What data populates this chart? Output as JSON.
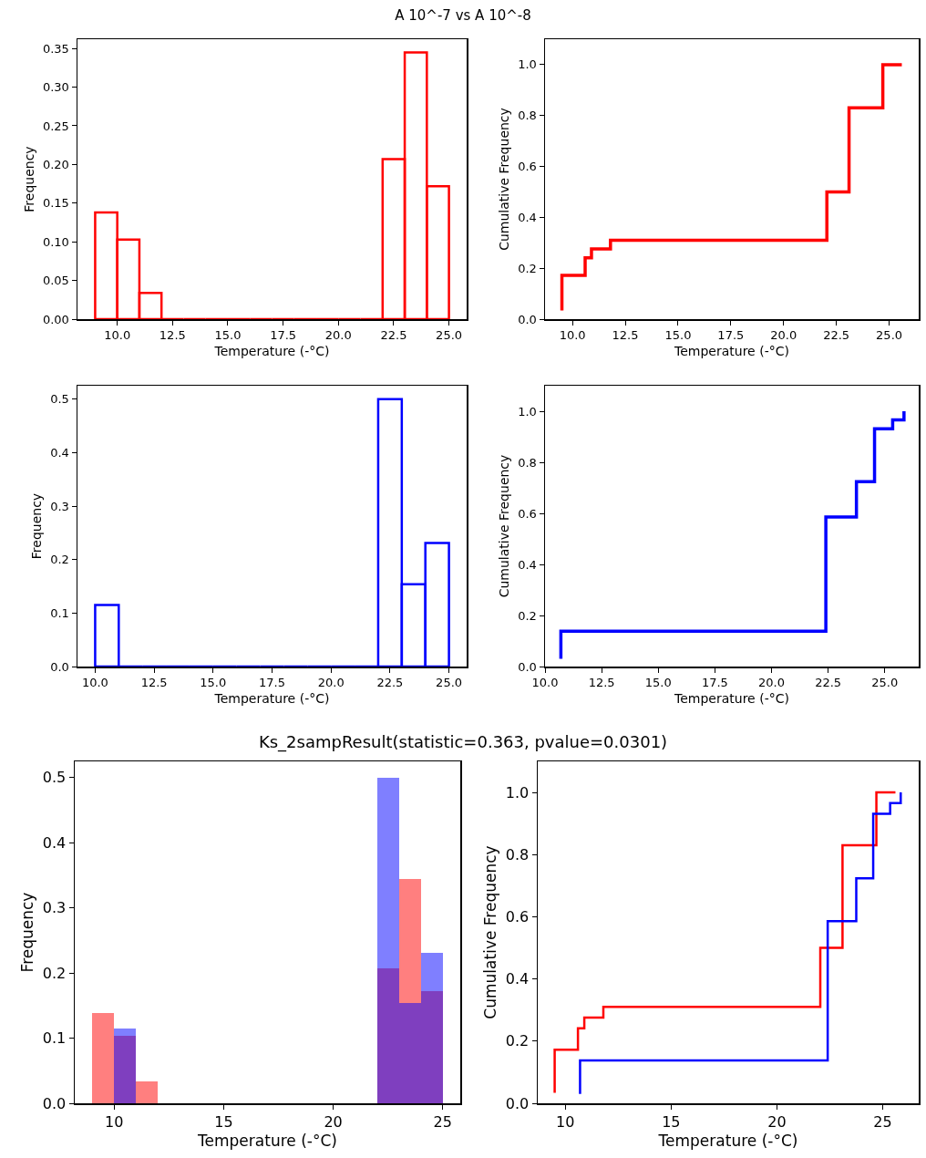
{
  "chart_data": [
    {
      "type": "histogram",
      "title": "A 10^-7 vs A 10^-8",
      "xlabel": "Temperature (-°C)",
      "ylabel": "Frequency",
      "color": "#ff0000",
      "bins": [
        9,
        10,
        11,
        12,
        13,
        14,
        15,
        16,
        17,
        18,
        19,
        20,
        21,
        22,
        23,
        24,
        25
      ],
      "values": [
        0.138,
        0.103,
        0.034,
        0,
        0,
        0,
        0,
        0,
        0,
        0,
        0,
        0,
        0,
        0.207,
        0.345,
        0.172
      ],
      "xlim": [
        8.2,
        25.8
      ],
      "xticks": [
        {
          "value": 10,
          "label": "10.0"
        },
        {
          "value": 12.5,
          "label": "12.5"
        },
        {
          "value": 15,
          "label": "15.0"
        },
        {
          "value": 17.5,
          "label": "17.5"
        },
        {
          "value": 20,
          "label": "20.0"
        },
        {
          "value": 22.5,
          "label": "22.5"
        },
        {
          "value": 25,
          "label": "25.0"
        }
      ],
      "ylim": [
        0,
        0.362
      ],
      "yticks": [
        {
          "value": 0,
          "label": "0.00"
        },
        {
          "value": 0.05,
          "label": "0.05"
        },
        {
          "value": 0.1,
          "label": "0.10"
        },
        {
          "value": 0.15,
          "label": "0.15"
        },
        {
          "value": 0.2,
          "label": "0.20"
        },
        {
          "value": 0.25,
          "label": "0.25"
        },
        {
          "value": 0.3,
          "label": "0.30"
        },
        {
          "value": 0.35,
          "label": "0.35"
        }
      ]
    },
    {
      "type": "step",
      "xlabel": "Temperature (-°C)",
      "ylabel": "Cumulative Frequency",
      "color": "#ff0000",
      "x": [
        9.5,
        9.5,
        10.6,
        10.9,
        11.8,
        22.05,
        23.1,
        24.7,
        25.6
      ],
      "values": [
        0.034,
        0.172,
        0.241,
        0.276,
        0.31,
        0.5,
        0.83,
        1.0,
        1.0
      ],
      "xlim": [
        8.7,
        26.4
      ],
      "xticks": [
        {
          "value": 10,
          "label": "10.0"
        },
        {
          "value": 12.5,
          "label": "12.5"
        },
        {
          "value": 15,
          "label": "15.0"
        },
        {
          "value": 17.5,
          "label": "17.5"
        },
        {
          "value": 20,
          "label": "20.0"
        },
        {
          "value": 22.5,
          "label": "22.5"
        },
        {
          "value": 25,
          "label": "25.0"
        }
      ],
      "ylim": [
        0,
        1.1
      ],
      "yticks": [
        {
          "value": 0,
          "label": "0.0"
        },
        {
          "value": 0.2,
          "label": "0.2"
        },
        {
          "value": 0.4,
          "label": "0.4"
        },
        {
          "value": 0.6,
          "label": "0.6"
        },
        {
          "value": 0.8,
          "label": "0.8"
        },
        {
          "value": 1,
          "label": "1.0"
        }
      ]
    },
    {
      "type": "histogram",
      "xlabel": "Temperature (-°C)",
      "ylabel": "Frequency",
      "color": "#0000ff",
      "bins": [
        10,
        11,
        12,
        13,
        14,
        15,
        16,
        17,
        18,
        19,
        20,
        21,
        22,
        23,
        24,
        25
      ],
      "values": [
        0.115,
        0,
        0,
        0,
        0,
        0,
        0,
        0,
        0,
        0,
        0,
        0,
        0.5,
        0.154,
        0.231
      ],
      "xlim": [
        9.25,
        25.75
      ],
      "xticks": [
        {
          "value": 10,
          "label": "10.0"
        },
        {
          "value": 12.5,
          "label": "12.5"
        },
        {
          "value": 15,
          "label": "15.0"
        },
        {
          "value": 17.5,
          "label": "17.5"
        },
        {
          "value": 20,
          "label": "20.0"
        },
        {
          "value": 22.5,
          "label": "22.5"
        },
        {
          "value": 25,
          "label": "25.0"
        }
      ],
      "ylim": [
        0,
        0.525
      ],
      "yticks": [
        {
          "value": 0,
          "label": "0.0"
        },
        {
          "value": 0.1,
          "label": "0.1"
        },
        {
          "value": 0.2,
          "label": "0.2"
        },
        {
          "value": 0.3,
          "label": "0.3"
        },
        {
          "value": 0.4,
          "label": "0.4"
        },
        {
          "value": 0.5,
          "label": "0.5"
        }
      ]
    },
    {
      "type": "step",
      "xlabel": "Temperature (-°C)",
      "ylabel": "Cumulative Frequency",
      "color": "#0000ff",
      "x": [
        10.7,
        10.7,
        22.4,
        23.75,
        24.55,
        25.35,
        25.85
      ],
      "values": [
        0.03,
        0.138,
        0.586,
        0.724,
        0.931,
        0.966,
        1.0
      ],
      "xlim": [
        10,
        26.5
      ],
      "xticks": [
        {
          "value": 10,
          "label": "10.0"
        },
        {
          "value": 12.5,
          "label": "12.5"
        },
        {
          "value": 15,
          "label": "15.0"
        },
        {
          "value": 17.5,
          "label": "17.5"
        },
        {
          "value": 20,
          "label": "20.0"
        },
        {
          "value": 22.5,
          "label": "22.5"
        },
        {
          "value": 25,
          "label": "25.0"
        }
      ],
      "ylim": [
        0,
        1.1
      ],
      "yticks": [
        {
          "value": 0,
          "label": "0.0"
        },
        {
          "value": 0.2,
          "label": "0.2"
        },
        {
          "value": 0.4,
          "label": "0.4"
        },
        {
          "value": 0.6,
          "label": "0.6"
        },
        {
          "value": 0.8,
          "label": "0.8"
        },
        {
          "value": 1,
          "label": "1.0"
        }
      ]
    },
    {
      "type": "histogram",
      "title": "Ks_2sampResult(statistic=0.363, pvalue=0.0301)",
      "xlabel": "Temperature (-°C)",
      "ylabel": "Frequency",
      "bins": [
        9,
        10,
        11,
        12,
        13,
        14,
        15,
        16,
        17,
        18,
        19,
        20,
        21,
        22,
        23,
        24,
        25
      ],
      "series": [
        {
          "color": "#ff0000",
          "values": [
            0.138,
            0.103,
            0.034,
            0,
            0,
            0,
            0,
            0,
            0,
            0,
            0,
            0,
            0,
            0.207,
            0.345,
            0.172
          ]
        },
        {
          "color": "#0000ff",
          "values": [
            0,
            0.115,
            0,
            0,
            0,
            0,
            0,
            0,
            0,
            0,
            0,
            0,
            0,
            0.5,
            0.154,
            0.231
          ]
        }
      ],
      "xlim": [
        8.2,
        25.8
      ],
      "xticks": [
        10,
        15,
        20,
        25
      ],
      "ylim": [
        0,
        0.525
      ],
      "yticks": [
        {
          "value": 0,
          "label": "0.0"
        },
        {
          "value": 0.1,
          "label": "0.1"
        },
        {
          "value": 0.2,
          "label": "0.2"
        },
        {
          "value": 0.3,
          "label": "0.3"
        },
        {
          "value": 0.4,
          "label": "0.4"
        },
        {
          "value": 0.5,
          "label": "0.5"
        }
      ]
    },
    {
      "type": "step",
      "xlabel": "Temperature (-°C)",
      "ylabel": "Cumulative Frequency",
      "series": [
        {
          "color": "#ff0000",
          "x": [
            9.5,
            9.5,
            10.6,
            10.9,
            11.8,
            22.05,
            23.1,
            24.7,
            25.6
          ],
          "values": [
            0.034,
            0.172,
            0.241,
            0.276,
            0.31,
            0.5,
            0.83,
            1.0,
            1.0
          ]
        },
        {
          "color": "#0000ff",
          "x": [
            10.7,
            10.7,
            22.4,
            23.75,
            24.55,
            25.35,
            25.85
          ],
          "values": [
            0.03,
            0.138,
            0.586,
            0.724,
            0.931,
            0.966,
            1.0
          ]
        }
      ],
      "xlim": [
        8.7,
        26.7
      ],
      "xticks": [
        10,
        15,
        20,
        25
      ],
      "ylim": [
        0,
        1.1
      ],
      "yticks": [
        {
          "value": 0,
          "label": "0.0"
        },
        {
          "value": 0.2,
          "label": "0.2"
        },
        {
          "value": 0.4,
          "label": "0.4"
        },
        {
          "value": 0.6,
          "label": "0.6"
        },
        {
          "value": 0.8,
          "label": "0.8"
        },
        {
          "value": 1,
          "label": "1.0"
        }
      ]
    }
  ]
}
